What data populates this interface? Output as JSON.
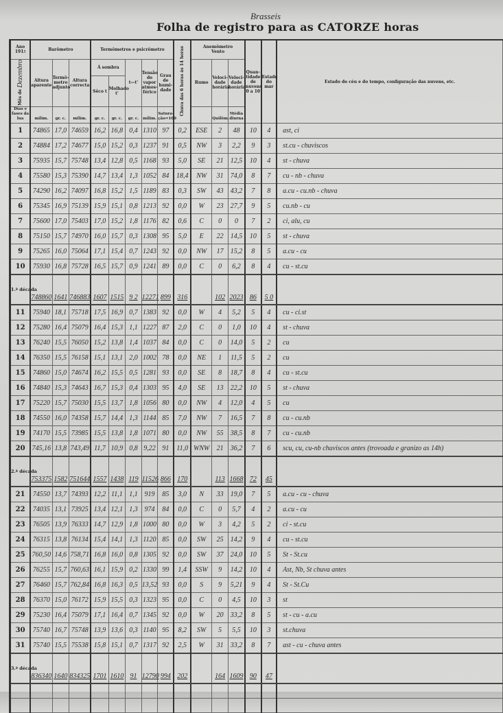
{
  "title": {
    "prefix": "Folha de registro para as",
    "hour": "CATORZE",
    "suffix": "horas",
    "annotation": "Brasseis"
  },
  "header": {
    "year_label": "Ano",
    "year": "191",
    "year_digit": "5",
    "month_label": "Mês de",
    "month": "Dezembro",
    "days_label": "Dias e fases da lua",
    "barometer": "Barômetro",
    "alt_aparente": "Altura aparente",
    "term_adjunto": "Termô-metro adjunto",
    "alt_correcta": "Altura correcta",
    "thermometers": "Termômetros e psicrômetro",
    "a_sombra": "À sombra",
    "seco": "Sêco t",
    "molhado": "Molhado t'",
    "t_diff": "t—t'",
    "tensao": "Tensão do vapor atmos-férico",
    "grau": "Grau de humi-dade",
    "chuva": "Chuva das 6 horas às 14 horas",
    "anemometer": "Anemômetro",
    "vento": "Vento",
    "rumo": "Rumo",
    "vel_horaria": "Veloci-dade horária",
    "vel_horaria2": "Veloci-dade horária",
    "nuvens": "Quan-tidade de nuvens 0 a 10",
    "mar": "Estado do mar",
    "ceu": "Estado do céu e do tempo, configuração das nuvens, etc.",
    "units": {
      "milim": "milím.",
      "grc": "gr. c.",
      "saturacao": "Satura-ção=100",
      "quilom": "Quilôm.",
      "media": "Média diurna"
    }
  },
  "rows": [
    {
      "day": "1",
      "values": [
        "74865",
        "17,0",
        "74659",
        "16,2",
        "16,8",
        "0,4",
        "1310",
        "97",
        "0,2",
        "ESE",
        "2",
        "48",
        "10",
        "4"
      ],
      "sky": "ast, ci"
    },
    {
      "day": "2",
      "values": [
        "74884",
        "17,2",
        "74677",
        "15,0",
        "15,2",
        "0,3",
        "1237",
        "91",
        "0,5",
        "NW",
        "3",
        "2,2",
        "9",
        "3"
      ],
      "sky": "st.cu - chuviscos"
    },
    {
      "day": "3",
      "values": [
        "75935",
        "15,7",
        "75748",
        "13,4",
        "12,8",
        "0,5",
        "1168",
        "93",
        "5,0",
        "SE",
        "21",
        "12,5",
        "10",
        "4"
      ],
      "sky": "st - chuva"
    },
    {
      "day": "4",
      "values": [
        "75580",
        "15,3",
        "75390",
        "14,7",
        "13,4",
        "1,3",
        "1052",
        "84",
        "18,4",
        "NW",
        "31",
        "74,0",
        "8",
        "7"
      ],
      "sky": "cu - nb - chuva"
    },
    {
      "day": "5",
      "values": [
        "74290",
        "16,2",
        "74097",
        "16,8",
        "15,2",
        "1,5",
        "1189",
        "83",
        "0,3",
        "SW",
        "43",
        "43,2",
        "7",
        "8"
      ],
      "sky": "a.cu - cu.nb - chuva"
    },
    {
      "day": "6",
      "values": [
        "75345",
        "16,9",
        "75139",
        "15,9",
        "15,1",
        "0,8",
        "1213",
        "92",
        "0,0",
        "W",
        "23",
        "27,7",
        "9",
        "5"
      ],
      "sky": "cu.nb - cu"
    },
    {
      "day": "7",
      "values": [
        "75600",
        "17,0",
        "75403",
        "17,0",
        "15,2",
        "1,8",
        "1176",
        "82",
        "0,6",
        "C",
        "0",
        "0",
        "7",
        "2"
      ],
      "sky": "ci, alu, cu"
    },
    {
      "day": "8",
      "values": [
        "75150",
        "15,7",
        "74970",
        "16,0",
        "15,7",
        "0,3",
        "1308",
        "95",
        "5,0",
        "E",
        "22",
        "14,5",
        "10",
        "5"
      ],
      "sky": "st - chuva"
    },
    {
      "day": "9",
      "values": [
        "75265",
        "16,0",
        "75064",
        "17,1",
        "15,4",
        "0,7",
        "1243",
        "92",
        "0,0",
        "NW",
        "17",
        "15,2",
        "8",
        "5"
      ],
      "sky": "a.cu - cu"
    },
    {
      "day": "10",
      "values": [
        "75930",
        "16,8",
        "75728",
        "16,5",
        "15,7",
        "0,9",
        "1241",
        "89",
        "0,0",
        "C",
        "0",
        "6,2",
        "8",
        "4"
      ],
      "sky": "cu - st.cu"
    }
  ],
  "decade1": {
    "label": "1.ª década",
    "values": [
      "748860",
      "1641",
      "746883",
      "1607",
      "1515",
      "9 2",
      "12271",
      "899",
      "316",
      "",
      "102",
      "2023",
      "86",
      "5 0"
    ]
  },
  "rows2": [
    {
      "day": "11",
      "values": [
        "75940",
        "18,1",
        "75718",
        "17,5",
        "16,9",
        "0,7",
        "1383",
        "92",
        "0,0",
        "W",
        "4",
        "5,2",
        "5",
        "4"
      ],
      "sky": "cu - ci.st"
    },
    {
      "day": "12",
      "values": [
        "75280",
        "16,4",
        "75079",
        "16,4",
        "15,3",
        "1,1",
        "1227",
        "87",
        "2,0",
        "C",
        "0",
        "1,0",
        "10",
        "4"
      ],
      "sky": "st - chuva"
    },
    {
      "day": "13",
      "values": [
        "76240",
        "15,5",
        "76050",
        "15,2",
        "13,8",
        "1,4",
        "1037",
        "84",
        "0,0",
        "C",
        "0",
        "14,0",
        "5",
        "2"
      ],
      "sky": "cu"
    },
    {
      "day": "14",
      "values": [
        "76350",
        "15,5",
        "76158",
        "15,1",
        "13,1",
        "2,0",
        "1002",
        "78",
        "0,0",
        "NE",
        "1",
        "11,5",
        "5",
        "2"
      ],
      "sky": "cu"
    },
    {
      "day": "15",
      "values": [
        "74860",
        "15,0",
        "74674",
        "16,2",
        "15,5",
        "0,5",
        "1281",
        "93",
        "0,0",
        "SE",
        "8",
        "18,7",
        "8",
        "4"
      ],
      "sky": "cu - st.cu"
    },
    {
      "day": "16",
      "values": [
        "74840",
        "15,3",
        "74643",
        "16,7",
        "15,3",
        "0,4",
        "1303",
        "95",
        "4,0",
        "SE",
        "13",
        "22,2",
        "10",
        "5"
      ],
      "sky": "st - chuva"
    },
    {
      "day": "17",
      "values": [
        "75220",
        "15,7",
        "75030",
        "15,5",
        "13,7",
        "1,8",
        "1056",
        "80",
        "0,0",
        "NW",
        "4",
        "12,0",
        "4",
        "5"
      ],
      "sky": "cu"
    },
    {
      "day": "18",
      "values": [
        "74550",
        "16,0",
        "74358",
        "15,7",
        "14,4",
        "1,3",
        "1144",
        "85",
        "7,0",
        "NW",
        "7",
        "16,5",
        "7",
        "8"
      ],
      "sky": "cu - cu.nb"
    },
    {
      "day": "19",
      "values": [
        "74170",
        "15,5",
        "73985",
        "15,5",
        "13,8",
        "1,8",
        "1071",
        "80",
        "0,0",
        "NW",
        "55",
        "38,5",
        "8",
        "7"
      ],
      "sky": "cu - cu.nb"
    },
    {
      "day": "20",
      "values": [
        "745,16",
        "13,8",
        "743,49",
        "11,7",
        "10,9",
        "0,8",
        "9,22",
        "91",
        "11,0",
        "WNW",
        "21",
        "36,2",
        "7",
        "6"
      ],
      "sky": "scu, cu, cu-nb chuviscos antes (trovoada e granizo as 14h)"
    }
  ],
  "decade2": {
    "label": "2.ª década",
    "values": [
      "753375",
      "1582",
      "751644",
      "1557",
      "1438",
      "119",
      "11526",
      "866",
      "170",
      "",
      "113",
      "1668",
      "72",
      "45"
    ]
  },
  "rows3": [
    {
      "day": "21",
      "values": [
        "74550",
        "13,7",
        "74393",
        "12,2",
        "11,1",
        "1,1",
        "919",
        "85",
        "3,0",
        "N",
        "33",
        "19,0",
        "7",
        "5"
      ],
      "sky": "a.cu - cu - chuva"
    },
    {
      "day": "22",
      "values": [
        "74035",
        "13,1",
        "73925",
        "13,4",
        "12,1",
        "1,3",
        "974",
        "84",
        "0,0",
        "C",
        "0",
        "5,7",
        "4",
        "2"
      ],
      "sky": "a.cu - cu"
    },
    {
      "day": "23",
      "values": [
        "76505",
        "13,9",
        "76333",
        "14,7",
        "12,9",
        "1,8",
        "1000",
        "80",
        "0,0",
        "W",
        "3",
        "4,2",
        "5",
        "2"
      ],
      "sky": "ci - st.cu"
    },
    {
      "day": "24",
      "values": [
        "76315",
        "13,8",
        "76134",
        "15,4",
        "14,1",
        "1,3",
        "1120",
        "85",
        "0,0",
        "SW",
        "25",
        "14,2",
        "9",
        "4"
      ],
      "sky": "cu - st.cu"
    },
    {
      "day": "25",
      "values": [
        "760,50",
        "14,6",
        "758,71",
        "16,8",
        "16,0",
        "0,8",
        "1305",
        "92",
        "0,0",
        "SW",
        "37",
        "24,0",
        "10",
        "5"
      ],
      "sky": "St - St.cu"
    },
    {
      "day": "26",
      "values": [
        "76255",
        "15,7",
        "760,63",
        "16,1",
        "15,9",
        "0,2",
        "1330",
        "99",
        "1,4",
        "SSW",
        "9",
        "14,2",
        "10",
        "4"
      ],
      "sky": "Ast, Nb, St chuva antes"
    },
    {
      "day": "27",
      "values": [
        "76460",
        "15,7",
        "762,84",
        "16,8",
        "16,3",
        "0,5",
        "13,52",
        "93",
        "0,0",
        "S",
        "9",
        "5,21",
        "9",
        "4"
      ],
      "sky": "St - St.Cu"
    },
    {
      "day": "28",
      "values": [
        "76370",
        "15,0",
        "76172",
        "15,9",
        "15,5",
        "0,3",
        "1323",
        "95",
        "0,0",
        "C",
        "0",
        "4,5",
        "10",
        "3"
      ],
      "sky": "st"
    },
    {
      "day": "29",
      "values": [
        "75230",
        "16,4",
        "75079",
        "17,1",
        "16,4",
        "0,7",
        "1345",
        "92",
        "0,0",
        "W",
        "20",
        "33,2",
        "8",
        "5"
      ],
      "sky": "st - cu - a.cu"
    },
    {
      "day": "30",
      "values": [
        "75740",
        "16,7",
        "75748",
        "13,9",
        "13,6",
        "0,3",
        "1140",
        "95",
        "8,2",
        "SW",
        "5",
        "5,5",
        "10",
        "3"
      ],
      "sky": "st.chuva"
    },
    {
      "day": "31",
      "values": [
        "75740",
        "15,5",
        "75538",
        "15,8",
        "15,1",
        "0,7",
        "1317",
        "92",
        "2,5",
        "W",
        "31",
        "33,2",
        "8",
        "7"
      ],
      "sky": "ast - cu - chuva antes"
    }
  ],
  "decade3": {
    "label": "3.ª década",
    "values": [
      "836340",
      "1640",
      "834325",
      "1701",
      "1610",
      "91",
      "12790",
      "994",
      "202",
      "",
      "164",
      "1609",
      "90",
      "47"
    ]
  }
}
